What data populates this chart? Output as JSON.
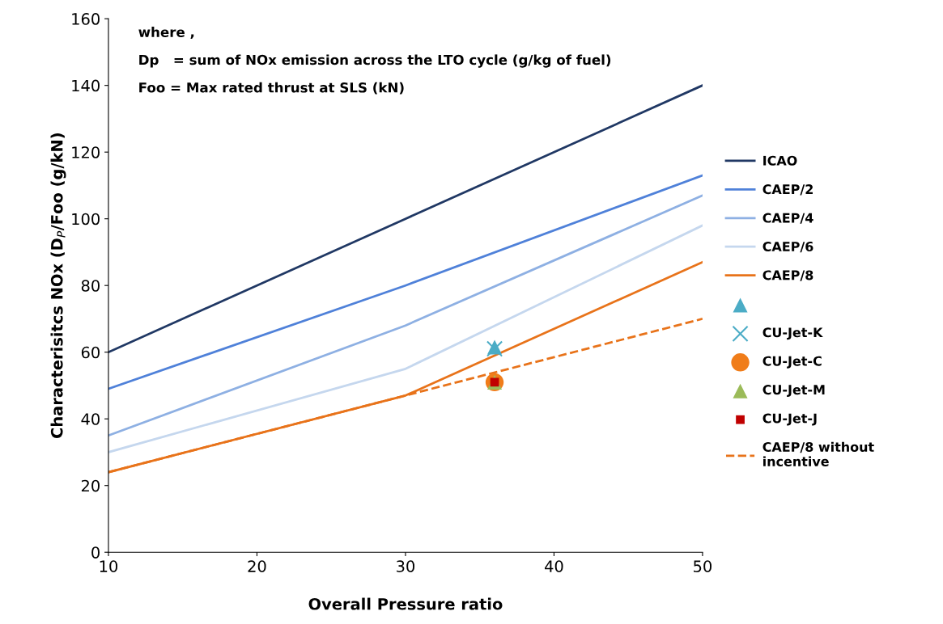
{
  "chart_data": {
    "type": "line",
    "xlabel": "Overall Pressure ratio",
    "ylabel": "Characterisitcs NOx (D$_{P}$/Foo (g/kN)",
    "annotations": [
      "where ,",
      "Dp   = sum of NOx emission across the LTO cycle (g/kg of fuel)",
      "Foo = Max rated thrust at SLS (kN)"
    ],
    "xlim": [
      10,
      50
    ],
    "xticks": [
      10,
      20,
      30,
      40,
      50
    ],
    "ylim": [
      0,
      160
    ],
    "yticks": [
      0,
      20,
      40,
      60,
      80,
      100,
      120,
      140,
      160
    ],
    "grid": false,
    "legend": "right",
    "marker": "none",
    "line_style": "solid",
    "series": [
      {
        "name": "ICAO",
        "color": "#203864",
        "x": [
          10,
          30,
          50
        ],
        "values": [
          60,
          100,
          140
        ]
      },
      {
        "name": "CAEP/2",
        "color": "#4f81d9",
        "x": [
          10,
          30,
          50
        ],
        "values": [
          49,
          80,
          113
        ]
      },
      {
        "name": "CAEP/4",
        "color": "#8eb0e3",
        "x": [
          10,
          30,
          50
        ],
        "values": [
          35,
          68,
          107
        ]
      },
      {
        "name": "CAEP/6",
        "color": "#c5d7ee",
        "x": [
          10,
          30,
          50
        ],
        "values": [
          30,
          55,
          98
        ]
      },
      {
        "name": "CAEP/8",
        "color": "#e8731a",
        "x": [
          10,
          30,
          50
        ],
        "values": [
          24,
          47,
          87
        ]
      },
      {
        "type": "scatter",
        "marker": "triangle",
        "color": "#4bacc6",
        "x": [
          36
        ],
        "values": [
          61.5
        ]
      },
      {
        "type": "scatter",
        "marker": "cross",
        "name": "CU-Jet-K",
        "color": "#4bacc6",
        "x": [
          36
        ],
        "values": [
          61
        ]
      },
      {
        "type": "scatter",
        "marker": "circle",
        "name": "CU-Jet-C",
        "color": "#f07d1a",
        "x": [
          36
        ],
        "values": [
          51
        ]
      },
      {
        "type": "scatter",
        "marker": "triangle",
        "name": "CU-Jet-M",
        "color": "#9bbb59",
        "x": [
          36
        ],
        "values": [
          51
        ]
      },
      {
        "type": "scatter",
        "marker": "square",
        "name": "CU-Jet-J",
        "color": "#c00000",
        "x": [
          36
        ],
        "values": [
          51
        ]
      },
      {
        "name": "CAEP/8 without\nincentive",
        "color": "#e8731a",
        "line_style": "dashed",
        "x": [
          10,
          30,
          50
        ],
        "values": [
          24,
          47,
          70
        ]
      }
    ]
  }
}
